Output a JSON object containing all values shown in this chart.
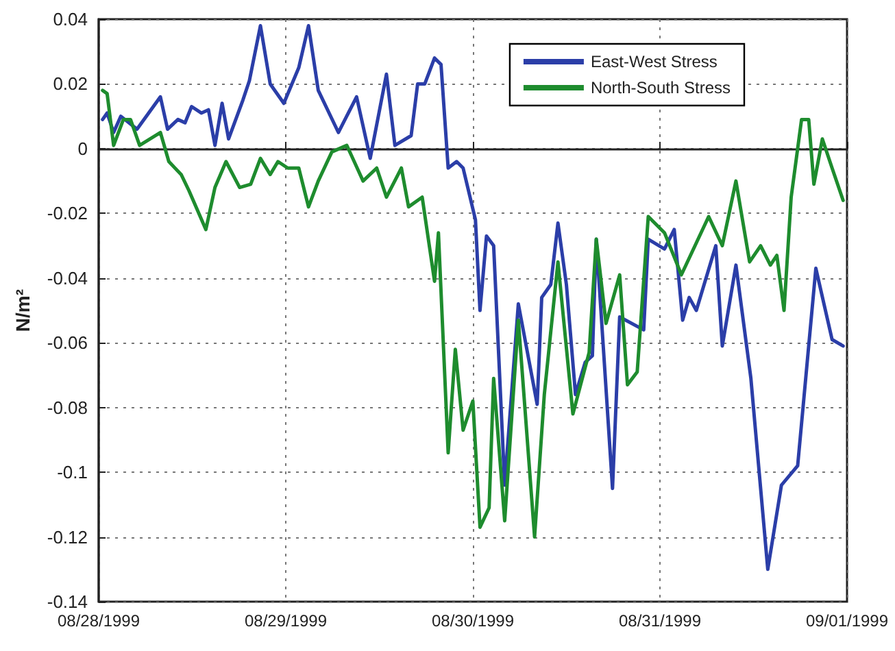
{
  "chart_data": {
    "type": "line",
    "ylabel": "N/m²",
    "xlim": [
      "1999-08-28",
      "1999-09-01"
    ],
    "xticks": [
      {
        "value": "1999-08-28",
        "label": "08/28/1999"
      },
      {
        "value": "1999-08-29",
        "label": "08/29/1999"
      },
      {
        "value": "1999-08-30",
        "label": "08/30/1999"
      },
      {
        "value": "1999-08-31",
        "label": "08/31/1999"
      },
      {
        "value": "1999-09-01",
        "label": "09/01/1999"
      }
    ],
    "ylim": [
      -0.14,
      0.04
    ],
    "yticks": [
      -0.14,
      -0.12,
      -0.1,
      -0.08,
      -0.06,
      -0.04,
      -0.02,
      0,
      0.02,
      0.04
    ],
    "grid": true,
    "legend": "top right",
    "marker": "none",
    "line_style": "solid",
    "series": [
      {
        "name": "East-West Stress",
        "color": "#2b3ea8",
        "x": [
          "1999-08-28T00:30",
          "1999-08-28T01:05",
          "1999-08-28T01:55",
          "1999-08-28T02:50",
          "1999-08-28T04:55",
          "1999-08-28T07:55",
          "1999-08-28T08:50",
          "1999-08-28T10:10",
          "1999-08-28T11:05",
          "1999-08-28T11:55",
          "1999-08-28T13:10",
          "1999-08-28T14:05",
          "1999-08-28T14:55",
          "1999-08-28T15:50",
          "1999-08-28T16:40",
          "1999-08-28T18:30",
          "1999-08-28T19:20",
          "1999-08-28T20:45",
          "1999-08-28T22:00",
          "1999-08-28T23:45",
          "1999-08-29T01:40",
          "1999-08-29T02:55",
          "1999-08-29T04:10",
          "1999-08-29T06:45",
          "1999-08-29T09:05",
          "1999-08-29T10:50",
          "1999-08-29T12:55",
          "1999-08-29T14:00",
          "1999-08-29T16:05",
          "1999-08-29T16:55",
          "1999-08-29T17:50",
          "1999-08-29T19:05",
          "1999-08-29T19:55",
          "1999-08-29T20:50",
          "1999-08-29T21:55",
          "1999-08-29T22:45",
          "1999-08-30T00:20",
          "1999-08-30T00:55",
          "1999-08-30T01:45",
          "1999-08-30T02:40",
          "1999-08-30T04:05",
          "1999-08-30T05:50",
          "1999-08-30T08:15",
          "1999-08-30T08:50",
          "1999-08-30T10:00",
          "1999-08-30T10:55",
          "1999-08-30T12:00",
          "1999-08-30T13:10",
          "1999-08-30T14:25",
          "1999-08-30T15:20",
          "1999-08-30T15:50",
          "1999-08-30T17:55",
          "1999-08-30T18:50",
          "1999-08-30T21:55",
          "1999-08-30T22:30",
          "1999-08-31T00:35",
          "1999-08-31T01:50",
          "1999-08-31T02:55",
          "1999-08-31T03:45",
          "1999-08-31T04:40",
          "1999-08-31T07:10",
          "1999-08-31T08:00",
          "1999-08-31T09:45",
          "1999-08-31T11:40",
          "1999-08-31T13:50",
          "1999-08-31T15:35",
          "1999-08-31T17:40",
          "1999-08-31T20:00",
          "1999-08-31T22:05",
          "1999-08-31T23:30"
        ],
        "values": [
          0.009,
          0.011,
          0.005,
          0.01,
          0.006,
          0.016,
          0.006,
          0.009,
          0.008,
          0.013,
          0.011,
          0.012,
          0.001,
          0.014,
          0.003,
          0.015,
          0.021,
          0.038,
          0.02,
          0.014,
          0.025,
          0.038,
          0.018,
          0.005,
          0.016,
          -0.003,
          0.023,
          0.001,
          0.004,
          0.02,
          0.02,
          0.028,
          0.026,
          -0.006,
          -0.004,
          -0.006,
          -0.022,
          -0.05,
          -0.027,
          -0.03,
          -0.104,
          -0.048,
          -0.079,
          -0.046,
          -0.042,
          -0.023,
          -0.042,
          -0.076,
          -0.066,
          -0.064,
          -0.028,
          -0.105,
          -0.052,
          -0.056,
          -0.028,
          -0.031,
          -0.025,
          -0.053,
          -0.046,
          -0.05,
          -0.03,
          -0.061,
          -0.036,
          -0.071,
          -0.13,
          -0.104,
          -0.098,
          -0.037,
          -0.059,
          -0.061
        ]
      },
      {
        "name": "North-South Stress",
        "color": "#1e8c2e",
        "x": [
          "1999-08-28T00:30",
          "1999-08-28T01:05",
          "1999-08-28T01:55",
          "1999-08-28T03:10",
          "1999-08-28T04:05",
          "1999-08-28T05:15",
          "1999-08-28T07:55",
          "1999-08-28T09:00",
          "1999-08-28T10:35",
          "1999-08-28T11:35",
          "1999-08-28T13:45",
          "1999-08-28T14:55",
          "1999-08-28T16:20",
          "1999-08-28T18:05",
          "1999-08-28T19:30",
          "1999-08-28T20:45",
          "1999-08-28T22:00",
          "1999-08-28T23:00",
          "1999-08-29T00:15",
          "1999-08-29T01:40",
          "1999-08-29T02:55",
          "1999-08-29T04:10",
          "1999-08-29T05:55",
          "1999-08-29T07:50",
          "1999-08-29T09:55",
          "1999-08-29T11:40",
          "1999-08-29T12:55",
          "1999-08-29T14:50",
          "1999-08-29T15:45",
          "1999-08-29T17:30",
          "1999-08-29T19:05",
          "1999-08-29T19:35",
          "1999-08-29T20:50",
          "1999-08-29T21:45",
          "1999-08-29T22:45",
          "1999-08-30T00:00",
          "1999-08-30T00:55",
          "1999-08-30T02:05",
          "1999-08-30T02:40",
          "1999-08-30T04:05",
          "1999-08-30T05:50",
          "1999-08-30T07:55",
          "1999-08-30T09:10",
          "1999-08-30T10:55",
          "1999-08-30T12:50",
          "1999-08-30T14:55",
          "1999-08-30T15:50",
          "1999-08-30T17:05",
          "1999-08-30T18:50",
          "1999-08-30T19:50",
          "1999-08-30T21:05",
          "1999-08-30T22:30",
          "1999-08-31T00:35",
          "1999-08-31T02:45",
          "1999-08-31T06:15",
          "1999-08-31T08:00",
          "1999-08-31T09:45",
          "1999-08-31T11:30",
          "1999-08-31T12:55",
          "1999-08-31T14:10",
          "1999-08-31T15:00",
          "1999-08-31T15:55",
          "1999-08-31T16:50",
          "1999-08-31T18:10",
          "1999-08-31T19:05",
          "1999-08-31T19:45",
          "1999-08-31T20:50",
          "1999-08-31T22:05",
          "1999-08-31T23:30"
        ],
        "values": [
          0.018,
          0.017,
          0.001,
          0.009,
          0.009,
          0.001,
          0.005,
          -0.004,
          -0.008,
          -0.013,
          -0.025,
          -0.012,
          -0.004,
          -0.012,
          -0.011,
          -0.003,
          -0.008,
          -0.004,
          -0.006,
          -0.006,
          -0.018,
          -0.01,
          -0.001,
          0.001,
          -0.01,
          -0.006,
          -0.015,
          -0.006,
          -0.018,
          -0.015,
          -0.041,
          -0.026,
          -0.094,
          -0.062,
          -0.087,
          -0.078,
          -0.117,
          -0.111,
          -0.071,
          -0.115,
          -0.053,
          -0.12,
          -0.076,
          -0.035,
          -0.082,
          -0.063,
          -0.028,
          -0.054,
          -0.039,
          -0.073,
          -0.069,
          -0.021,
          -0.026,
          -0.039,
          -0.021,
          -0.03,
          -0.01,
          -0.035,
          -0.03,
          -0.036,
          -0.033,
          -0.05,
          -0.015,
          0.009,
          0.009,
          -0.011,
          0.003,
          -0.006,
          -0.016
        ]
      }
    ]
  }
}
